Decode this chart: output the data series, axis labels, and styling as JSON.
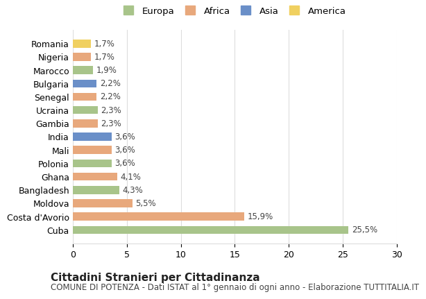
{
  "countries": [
    "Romania",
    "Nigeria",
    "Marocco",
    "Bulgaria",
    "Senegal",
    "Ucraina",
    "Gambia",
    "India",
    "Mali",
    "Polonia",
    "Ghana",
    "Bangladesh",
    "Moldova",
    "Costa d'Avorio",
    "Cuba"
  ],
  "values": [
    25.5,
    15.9,
    5.5,
    4.3,
    4.1,
    3.6,
    3.6,
    3.6,
    2.3,
    2.3,
    2.2,
    2.2,
    1.9,
    1.7,
    1.7
  ],
  "labels": [
    "25,5%",
    "15,9%",
    "5,5%",
    "4,3%",
    "4,1%",
    "3,6%",
    "3,6%",
    "3,6%",
    "2,3%",
    "2,3%",
    "2,2%",
    "2,2%",
    "1,9%",
    "1,7%",
    "1,7%"
  ],
  "continents": [
    "Europa",
    "Africa",
    "Africa",
    "Europa",
    "Africa",
    "Europa",
    "Africa",
    "Asia",
    "Africa",
    "Europa",
    "Africa",
    "Asia",
    "Europa",
    "Africa",
    "America"
  ],
  "colors": {
    "Europa": "#a8c48a",
    "Africa": "#e8a87c",
    "Asia": "#6a8fc8",
    "America": "#f0d060"
  },
  "legend_order": [
    "Europa",
    "Africa",
    "Asia",
    "America"
  ],
  "xlim": [
    0,
    30
  ],
  "xticks": [
    0,
    5,
    10,
    15,
    20,
    25,
    30
  ],
  "title": "Cittadini Stranieri per Cittadinanza",
  "subtitle": "COMUNE DI POTENZA - Dati ISTAT al 1° gennaio di ogni anno - Elaborazione TUTTITALIA.IT",
  "bg_color": "#ffffff",
  "grid_color": "#dddddd",
  "bar_height": 0.6,
  "label_fontsize": 8.5,
  "axis_label_fontsize": 9,
  "title_fontsize": 11,
  "subtitle_fontsize": 8.5
}
